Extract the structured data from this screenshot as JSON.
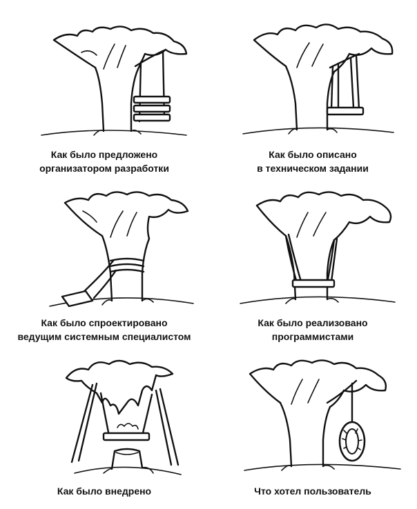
{
  "panels": [
    {
      "line1": "Как было предложено",
      "line2": "организатором разработки"
    },
    {
      "line1": "Как было описано",
      "line2": "в техническом задании"
    },
    {
      "line1": "Как было спроектировано",
      "line2": "ведущим системным специалистом"
    },
    {
      "line1": "Как было реализовано",
      "line2": "программистами"
    },
    {
      "line1": "Как было внедрено",
      "line2": ""
    },
    {
      "line1": "Что хотел пользователь",
      "line2": ""
    }
  ]
}
